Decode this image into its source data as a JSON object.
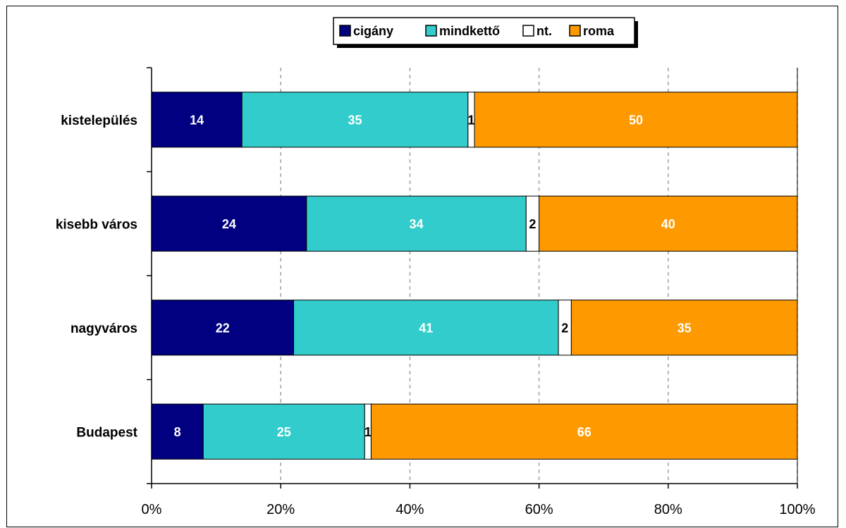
{
  "chart_data": {
    "type": "bar",
    "orientation": "horizontal",
    "stacked": "percent",
    "categories": [
      "kistelepülés",
      "kisebb város",
      "nagyváros",
      "Budapest"
    ],
    "series": [
      {
        "name": "cigány",
        "color": "#000080",
        "label_color": "#ffffff",
        "values": [
          14,
          24,
          22,
          8
        ]
      },
      {
        "name": "mindkettő",
        "color": "#33CCCC",
        "label_color": "#ffffff",
        "values": [
          35,
          34,
          41,
          25
        ]
      },
      {
        "name": "nt.",
        "color": "#ffffff",
        "label_color": "#000000",
        "values": [
          1,
          2,
          2,
          1
        ]
      },
      {
        "name": "roma",
        "color": "#FF9900",
        "label_color": "#ffffff",
        "values": [
          50,
          40,
          35,
          66
        ]
      }
    ],
    "xticks": [
      "0%",
      "20%",
      "40%",
      "60%",
      "80%",
      "100%"
    ],
    "xlim": [
      0,
      100
    ],
    "grid": "vertical dashed",
    "legend": "top-center"
  }
}
